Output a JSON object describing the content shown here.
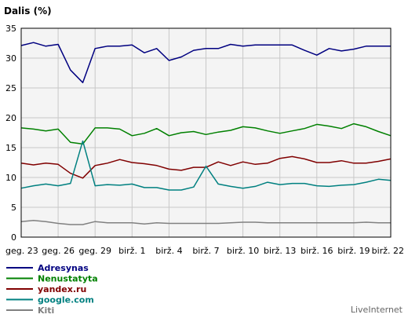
{
  "chart_data": {
    "type": "line",
    "ylabel": "Dalis (%)",
    "ylim": [
      0,
      35
    ],
    "yticks": [
      0,
      5,
      10,
      15,
      20,
      25,
      30,
      35
    ],
    "xtick_labels": [
      "geg. 23",
      "geg. 26",
      "geg. 29",
      "birž. 1",
      "birž. 4",
      "birž. 7",
      "birž. 10",
      "birž. 13",
      "birž. 16",
      "birž. 19",
      "birž. 22"
    ],
    "x": [
      "geg. 23",
      "geg. 24",
      "geg. 25",
      "geg. 26",
      "geg. 27",
      "geg. 28",
      "geg. 29",
      "geg. 30",
      "geg. 31",
      "birž. 1",
      "birž. 2",
      "birž. 3",
      "birž. 4",
      "birž. 5",
      "birž. 6",
      "birž. 7",
      "birž. 8",
      "birž. 9",
      "birž. 10",
      "birž. 11",
      "birž. 12",
      "birž. 13",
      "birž. 14",
      "birž. 15",
      "birž. 16",
      "birž. 17",
      "birž. 18",
      "birž. 19",
      "birž. 20",
      "birž. 21",
      "birž. 22"
    ],
    "grid": true,
    "legend_placement": "bottom-left",
    "series": [
      {
        "name": "Adresynas",
        "color": "#000080",
        "values": [
          32.1,
          32.6,
          32.0,
          32.3,
          28.0,
          25.9,
          31.6,
          32.0,
          32.0,
          32.2,
          30.9,
          31.6,
          29.6,
          30.2,
          31.3,
          31.6,
          31.6,
          32.3,
          32.0,
          32.2,
          32.2,
          32.2,
          32.2,
          31.3,
          30.5,
          31.6,
          31.2,
          31.5,
          32.0,
          32.0,
          32.0
        ]
      },
      {
        "name": "Nenustatyta",
        "color": "#008000",
        "values": [
          18.3,
          18.1,
          17.8,
          18.1,
          15.9,
          15.6,
          18.3,
          18.3,
          18.1,
          17.0,
          17.4,
          18.2,
          17.0,
          17.5,
          17.7,
          17.2,
          17.6,
          17.9,
          18.5,
          18.3,
          17.8,
          17.4,
          17.8,
          18.2,
          18.9,
          18.6,
          18.2,
          19.0,
          18.5,
          17.7,
          17.0
        ]
      },
      {
        "name": "yandex.ru",
        "color": "#800000",
        "values": [
          12.4,
          12.1,
          12.4,
          12.2,
          10.7,
          9.9,
          12.0,
          12.4,
          13.0,
          12.5,
          12.3,
          12.0,
          11.4,
          11.2,
          11.7,
          11.7,
          12.6,
          12.0,
          12.6,
          12.2,
          12.4,
          13.2,
          13.5,
          13.1,
          12.5,
          12.5,
          12.8,
          12.4,
          12.4,
          12.7,
          13.1
        ]
      },
      {
        "name": "google.com",
        "color": "#008080",
        "values": [
          8.2,
          8.6,
          8.9,
          8.6,
          9.0,
          16.1,
          8.6,
          8.8,
          8.7,
          8.9,
          8.3,
          8.3,
          7.9,
          7.9,
          8.4,
          11.9,
          8.9,
          8.5,
          8.2,
          8.5,
          9.2,
          8.8,
          9.0,
          9.0,
          8.6,
          8.5,
          8.7,
          8.8,
          9.2,
          9.7,
          9.5
        ]
      },
      {
        "name": "Kiti",
        "color": "#808080",
        "values": [
          2.6,
          2.8,
          2.6,
          2.3,
          2.1,
          2.1,
          2.6,
          2.4,
          2.4,
          2.4,
          2.2,
          2.4,
          2.3,
          2.3,
          2.3,
          2.3,
          2.3,
          2.4,
          2.5,
          2.5,
          2.4,
          2.4,
          2.4,
          2.4,
          2.4,
          2.4,
          2.4,
          2.4,
          2.5,
          2.4,
          2.4
        ]
      }
    ]
  },
  "brand": "LiveInternet"
}
